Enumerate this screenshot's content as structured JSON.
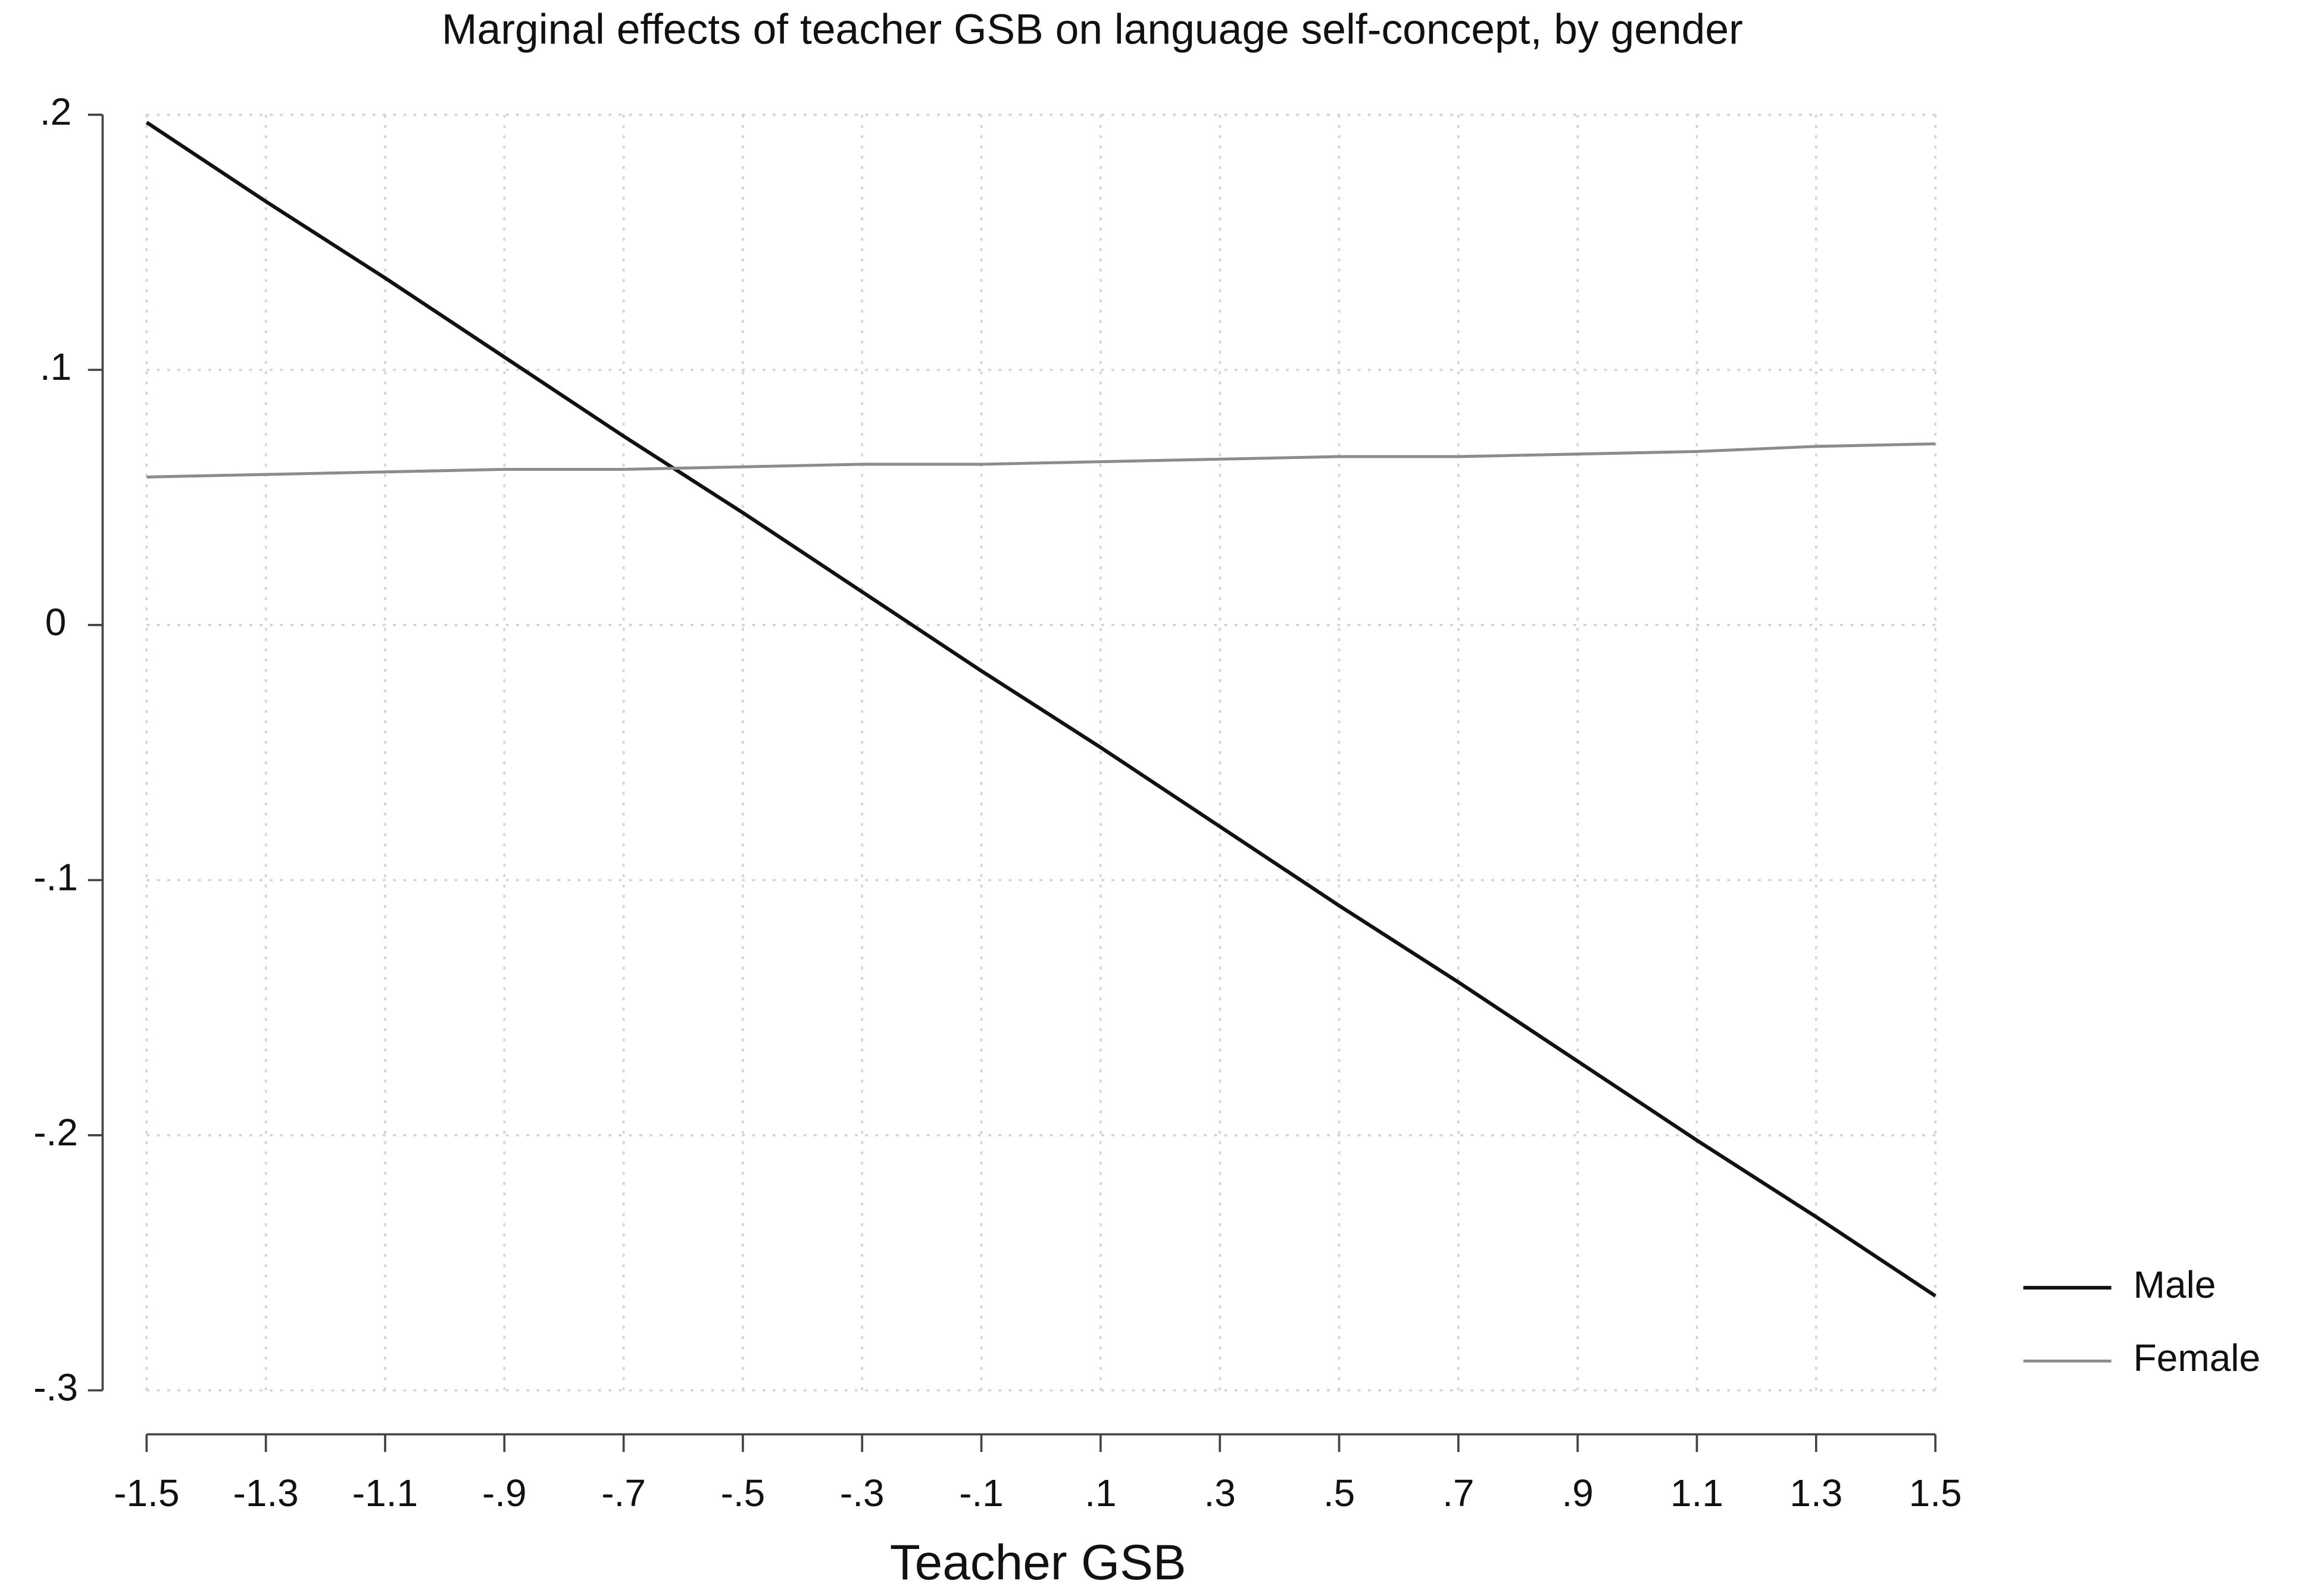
{
  "chart_data": {
    "type": "line",
    "title": "Marginal effects of teacher GSB on language self-concept, by gender",
    "x_label": "Teacher GSB",
    "x": [
      -1.5,
      -1.3,
      -1.1,
      -0.9,
      -0.7,
      -0.5,
      -0.3,
      -0.1,
      0.1,
      0.3,
      0.5,
      0.7,
      0.9,
      1.1,
      1.3,
      1.5
    ],
    "series": [
      {
        "name": "Male",
        "color": "#111111",
        "values": [
          0.197,
          0.166,
          0.136,
          0.105,
          0.074,
          0.044,
          0.013,
          -0.018,
          -0.048,
          -0.079,
          -0.11,
          -0.14,
          -0.171,
          -0.202,
          -0.232,
          -0.263
        ]
      },
      {
        "name": "Female",
        "color": "#8c8c8c",
        "values": [
          0.058,
          0.059,
          0.06,
          0.061,
          0.061,
          0.062,
          0.063,
          0.063,
          0.064,
          0.065,
          0.066,
          0.066,
          0.067,
          0.068,
          0.07,
          0.071
        ]
      }
    ],
    "xlim": [
      -1.5,
      1.5
    ],
    "xticks": [
      -1.5,
      -1.3,
      -1.1,
      {
        "value": -0.9,
        "label": "-.9"
      },
      {
        "value": -0.7,
        "label": "-.7"
      },
      {
        "value": -0.5,
        "label": "-.5"
      },
      {
        "value": -0.3,
        "label": "-.3"
      },
      {
        "value": -0.1,
        "label": "-.1"
      },
      {
        "value": 0.1,
        "label": ".1"
      },
      {
        "value": 0.3,
        "label": ".3"
      },
      {
        "value": 0.5,
        "label": ".5"
      },
      {
        "value": 0.7,
        "label": ".7"
      },
      {
        "value": 0.9,
        "label": ".9"
      },
      1.1,
      1.3,
      1.5
    ],
    "ylim": [
      -0.3,
      0.2
    ],
    "yticks": [
      {
        "value": 0.2,
        "label": ".2"
      },
      {
        "value": 0.1,
        "label": ".1"
      },
      0,
      {
        "value": -0.1,
        "label": "-.1"
      },
      {
        "value": -0.2,
        "label": "-.2"
      },
      {
        "value": -0.3,
        "label": "-.3"
      }
    ],
    "grid": true,
    "legend": "right"
  }
}
